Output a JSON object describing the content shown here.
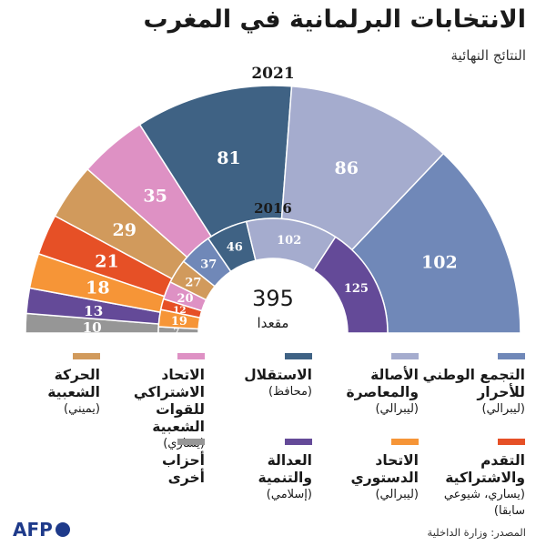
{
  "header": {
    "title": "الانتخابات البرلمانية في المغرب",
    "subtitle": "النتائج النهائية"
  },
  "chart_data": [
    {
      "type": "pie",
      "label": "2021",
      "categories": [
        "أحزاب أخرى",
        "العدالة والتنمية",
        "الاتحاد الدستوري",
        "التقدم والاشتراكية",
        "الحركة الشعبية",
        "الاتحاد الاشتراكي للقوات الشعبية",
        "الاستقلال",
        "الأصالة والمعاصرة",
        "التجمع الوطني للأحرار"
      ],
      "values": [
        10,
        13,
        18,
        21,
        29,
        35,
        81,
        86,
        102
      ]
    },
    {
      "type": "pie",
      "label": "2016",
      "categories": [
        "أحزاب أخرى",
        "الاتحاد الدستوري",
        "التقدم والاشتراكية",
        "الاتحاد الاشتراكي للقوات الشعبية",
        "الحركة الشعبية",
        "التجمع الوطني للأحرار",
        "الاستقلال",
        "الأصالة والمعاصرة",
        "العدالة والتنمية"
      ],
      "values": [
        7,
        19,
        12,
        20,
        27,
        37,
        46,
        102,
        125
      ]
    }
  ],
  "center": {
    "total": "395",
    "unit": "مقعدا"
  },
  "colors": {
    "rni": "#7088b8",
    "pam": "#a5acce",
    "istiqlal": "#3f6284",
    "usfp": "#de91c4",
    "mp": "#d19a5c",
    "pps": "#e65026",
    "uc": "#f69537",
    "pjd": "#644a98",
    "other": "#969696"
  },
  "legend": [
    {
      "key": "rni",
      "name": "التجمع الوطني\nللأحرار",
      "note": "(ليبرالي)"
    },
    {
      "key": "pam",
      "name": "الأصالة\nوالمعاصرة",
      "note": "(ليبرالي)"
    },
    {
      "key": "istiqlal",
      "name": "الاستقلال",
      "note": "(محافظ)"
    },
    {
      "key": "usfp",
      "name": "الاتحاد الاشتراكي\nللقوات الشعبية",
      "note": "(يساري)"
    },
    {
      "key": "mp",
      "name": "الحركة\nالشعبية",
      "note": "(يميني)"
    },
    {
      "key": "pps",
      "name": "التقدم والاشتراكية",
      "note": "(يساري، شيوعي\nسابقا)"
    },
    {
      "key": "uc",
      "name": "الاتحاد\nالدستوري",
      "note": "(ليبرالي)"
    },
    {
      "key": "pjd",
      "name": "العدالة\nوالتنمية",
      "note": "(إسلامي)"
    },
    {
      "key": "other",
      "name": "أحزاب\nأخرى",
      "note": ""
    }
  ],
  "footer": {
    "logo": "AFP",
    "source": "المصدر: وزارة الداخلية"
  }
}
